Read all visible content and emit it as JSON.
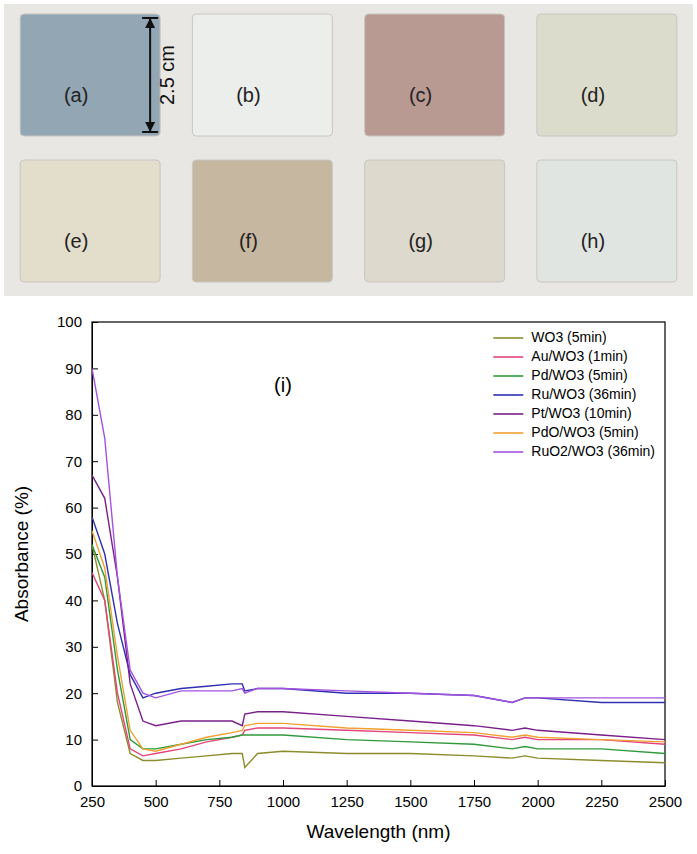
{
  "samples": {
    "labels": [
      "(a)",
      "(b)",
      "(c)",
      "(d)",
      "(e)",
      "(f)",
      "(g)",
      "(h)"
    ],
    "colors": [
      "#93a6b3",
      "#eceeec",
      "#b99a92",
      "#dcdccd",
      "#e3ddcc",
      "#c6b8a0",
      "#ddd9cd",
      "#e1e5e1"
    ],
    "scale_label": "2.5 cm"
  },
  "chart_data": {
    "type": "line",
    "annotations": [
      "(i)"
    ],
    "x_label": "Wavelength (nm)",
    "y_label": "Absorbance (%)",
    "x": [
      250,
      300,
      350,
      400,
      450,
      500,
      600,
      700,
      800,
      840,
      850,
      900,
      1000,
      1250,
      1500,
      1750,
      1900,
      1950,
      2000,
      2250,
      2500
    ],
    "series": [
      {
        "name": "WO3 (5min)",
        "color": "#8c8c2c",
        "values": [
          52,
          40,
          18,
          7,
          5.5,
          5.5,
          6,
          6.5,
          7,
          7,
          4,
          7,
          7.5,
          7,
          7,
          6.5,
          6,
          6.5,
          6,
          5.5,
          5
        ]
      },
      {
        "name": "Au/WO3 (1min)",
        "color": "#e2457a",
        "values": [
          46,
          40,
          20,
          8,
          6.5,
          7,
          8,
          9.5,
          10.5,
          11,
          12,
          12.5,
          12.5,
          12,
          11.5,
          11,
          10,
          10.5,
          10,
          10,
          9
        ]
      },
      {
        "name": "Pd/WO3 (5min)",
        "color": "#2e9a3a",
        "values": [
          52,
          45,
          25,
          10,
          8,
          8,
          9,
          10,
          10.5,
          11,
          11,
          11,
          11,
          10,
          9.5,
          9,
          8,
          8.5,
          8,
          8,
          7
        ]
      },
      {
        "name": "Ru/WO3 (36min)",
        "color": "#2f2fb3",
        "values": [
          58,
          50,
          35,
          24,
          19,
          20,
          21,
          21.5,
          22,
          22,
          20.5,
          21,
          21,
          20,
          20,
          19.5,
          18,
          19,
          19,
          18,
          18
        ]
      },
      {
        "name": "Pt/WO3 (10min)",
        "color": "#7a1f8a",
        "values": [
          67,
          62,
          45,
          22,
          14,
          13,
          14,
          14,
          14,
          13,
          15.5,
          16,
          16,
          15,
          14,
          13,
          12,
          12.5,
          12,
          11,
          10
        ]
      },
      {
        "name": "PdO/WO3 (5min)",
        "color": "#f0a030",
        "values": [
          55,
          47,
          28,
          12,
          8,
          7.5,
          9,
          10.5,
          11.5,
          12,
          13,
          13.5,
          13.5,
          12.5,
          12,
          11.5,
          10.5,
          11,
          10.5,
          10,
          9.5
        ]
      },
      {
        "name": "RuO2/WO3 (36min)",
        "color": "#a452e0",
        "values": [
          90,
          75,
          45,
          25,
          20,
          19,
          20.5,
          20.5,
          20.5,
          21,
          20,
          21,
          21,
          20.5,
          20,
          19.5,
          18,
          19,
          19,
          19,
          19
        ]
      }
    ],
    "xlim": [
      250,
      2500
    ],
    "xticks": [
      250,
      500,
      750,
      1000,
      1250,
      1500,
      1750,
      2000,
      2250,
      2500
    ],
    "ylim": [
      0,
      100
    ],
    "yticks": [
      0,
      10,
      20,
      30,
      40,
      50,
      60,
      70,
      80,
      90,
      100
    ],
    "grid": false,
    "legend": "upper right"
  }
}
